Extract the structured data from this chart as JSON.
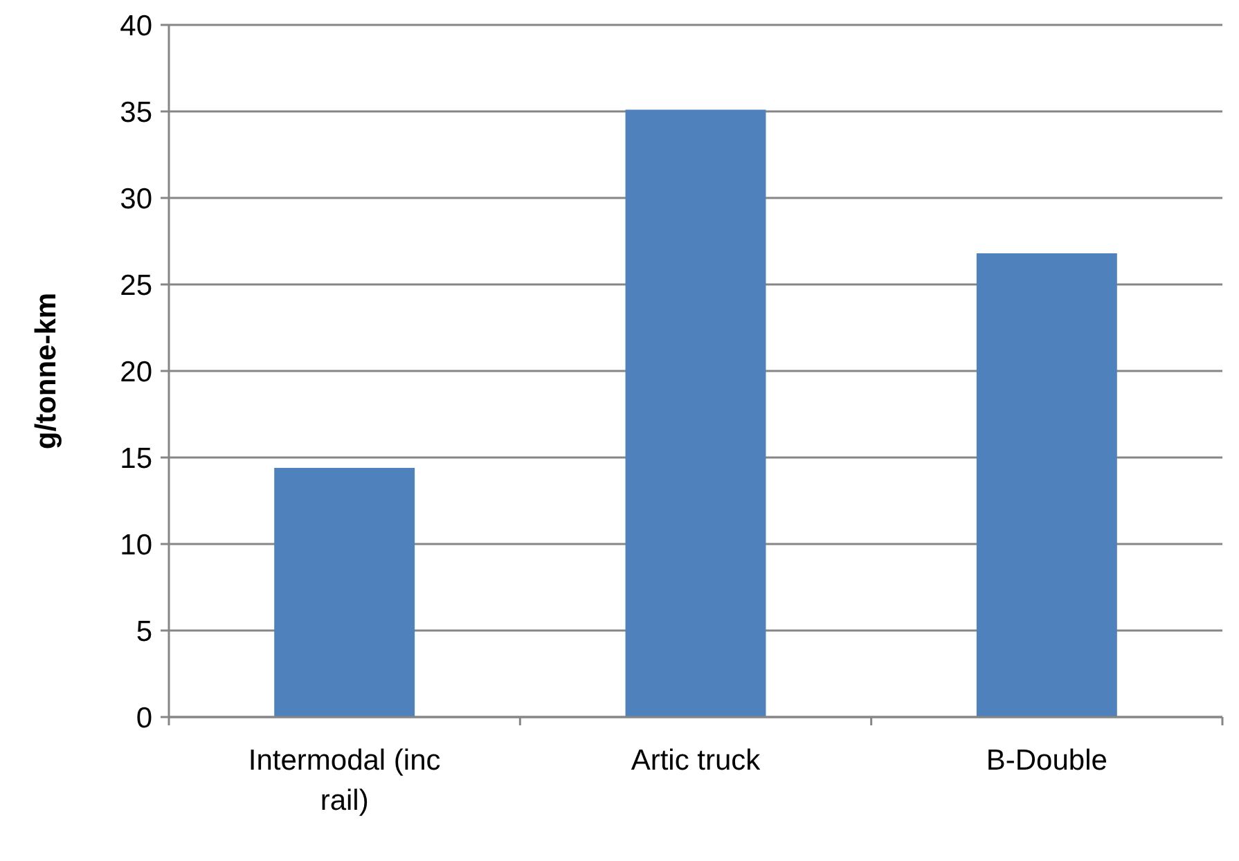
{
  "chart_data": {
    "type": "bar",
    "ylabel": "g/tonne-km",
    "categories": [
      "Intermodal (inc rail)",
      "Artic truck",
      "B-Double"
    ],
    "values": [
      14.4,
      35.1,
      26.8
    ],
    "color": "#4f81bd",
    "ylim": [
      0,
      40
    ],
    "yticks": [
      0,
      5,
      10,
      15,
      20,
      25,
      30,
      35,
      40
    ],
    "grid": "y"
  }
}
